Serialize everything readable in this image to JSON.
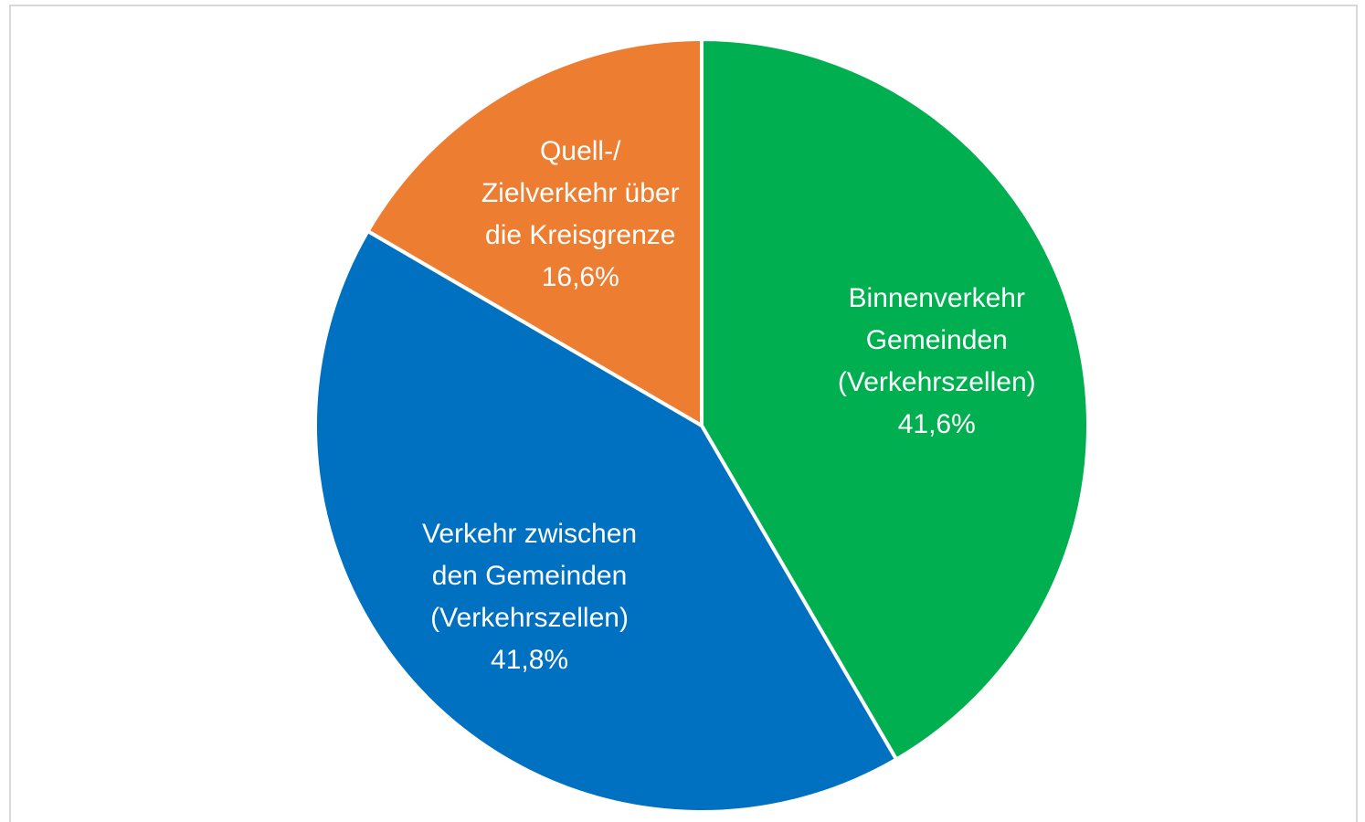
{
  "chart_data": {
    "type": "pie",
    "categories": [
      "Binnenverkehr\nGemeinden\n(Verkehrszellen)",
      "Verkehr zwischen\nden Gemeinden\n(Verkehrszellen)",
      "Quell-/\nZielverkehr über\ndie Kreisgrenze"
    ],
    "values": [
      41.6,
      41.8,
      16.6
    ],
    "value_labels": [
      "41,6%",
      "41,8%",
      "16,6%"
    ],
    "colors": [
      "#00b050",
      "#0070c0",
      "#ed7d31"
    ]
  }
}
